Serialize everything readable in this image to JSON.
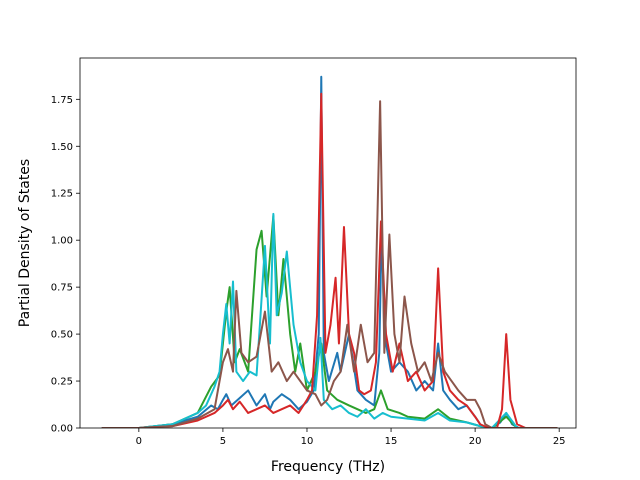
{
  "chart_data": {
    "type": "line",
    "title": "",
    "xlabel": "Frequency (THz)",
    "ylabel": "Partial Density of States",
    "xlim": [
      -3.5,
      26.0
    ],
    "ylim": [
      0.0,
      1.97
    ],
    "xticks": [
      0,
      5,
      10,
      15,
      20,
      25
    ],
    "xtick_labels": [
      "0",
      "5",
      "10",
      "15",
      "20",
      "25"
    ],
    "yticks": [
      0.0,
      0.25,
      0.5,
      0.75,
      1.0,
      1.25,
      1.5,
      1.75
    ],
    "ytick_labels": [
      "0.00",
      "0.25",
      "0.50",
      "0.75",
      "1.00",
      "1.25",
      "1.50",
      "1.75"
    ],
    "grid": false,
    "legend": "none",
    "series": [
      {
        "color": "#1f77b4",
        "x": [
          -2.2,
          0,
          2,
          3.5,
          4.3,
          4.7,
          5.0,
          5.2,
          5.5,
          6.0,
          6.5,
          7.0,
          7.5,
          7.8,
          8.0,
          8.5,
          9.0,
          9.5,
          10.0,
          10.4,
          10.7,
          10.85,
          11.0,
          11.3,
          11.8,
          12.0,
          12.5,
          13.0,
          13.5,
          14.0,
          14.3,
          14.45,
          14.6,
          15.0,
          15.5,
          16.0,
          16.5,
          17.0,
          17.5,
          17.8,
          18.1,
          18.5,
          19.0,
          19.5,
          20.0,
          20.3,
          20.6,
          21.0,
          21.5,
          21.85,
          22.2,
          22.6,
          23.5,
          24.9
        ],
        "y": [
          0,
          0,
          0.02,
          0.06,
          0.12,
          0.1,
          0.15,
          0.18,
          0.12,
          0.16,
          0.2,
          0.12,
          0.18,
          0.1,
          0.14,
          0.18,
          0.15,
          0.1,
          0.14,
          0.2,
          0.5,
          1.87,
          0.4,
          0.25,
          0.4,
          0.3,
          0.5,
          0.2,
          0.15,
          0.12,
          0.4,
          1.1,
          0.5,
          0.3,
          0.35,
          0.3,
          0.2,
          0.25,
          0.2,
          0.45,
          0.2,
          0.15,
          0.1,
          0.12,
          0.06,
          0.02,
          0.0,
          0.0,
          0.03,
          0.08,
          0.02,
          0.0,
          0.0,
          0.0
        ]
      },
      {
        "color": "#2ca02c",
        "x": [
          -2.2,
          0,
          2,
          3.5,
          4.3,
          4.8,
          5.2,
          5.4,
          5.7,
          6.0,
          6.5,
          7.0,
          7.3,
          7.6,
          8.0,
          8.3,
          8.6,
          9.0,
          9.3,
          9.6,
          10.0,
          10.5,
          10.85,
          11.2,
          11.8,
          12.5,
          13.0,
          13.5,
          14.0,
          14.4,
          14.8,
          15.5,
          16.0,
          17.0,
          17.8,
          18.5,
          19.5,
          20.3,
          21.0,
          21.85,
          22.5,
          24.9
        ],
        "y": [
          0,
          0,
          0.02,
          0.08,
          0.22,
          0.28,
          0.62,
          0.75,
          0.35,
          0.42,
          0.3,
          0.95,
          1.05,
          0.7,
          1.13,
          0.6,
          0.9,
          0.5,
          0.3,
          0.45,
          0.2,
          0.3,
          0.45,
          0.2,
          0.15,
          0.12,
          0.1,
          0.08,
          0.1,
          0.2,
          0.1,
          0.08,
          0.06,
          0.05,
          0.1,
          0.05,
          0.03,
          0.01,
          0.0,
          0.06,
          0.0,
          0.0
        ]
      },
      {
        "color": "#17becf",
        "x": [
          -2.2,
          0,
          2,
          3.5,
          4.0,
          4.5,
          4.8,
          5.0,
          5.2,
          5.4,
          5.6,
          5.8,
          6.2,
          6.6,
          7.0,
          7.2,
          7.5,
          7.8,
          8.0,
          8.2,
          8.5,
          8.8,
          9.2,
          9.6,
          10.0,
          10.5,
          10.8,
          11.0,
          11.5,
          12.0,
          12.5,
          13.0,
          13.5,
          14.0,
          14.5,
          15.0,
          16.0,
          17.0,
          17.8,
          18.5,
          19.5,
          20.3,
          21.0,
          21.85,
          22.5,
          24.9
        ],
        "y": [
          0,
          0,
          0.02,
          0.08,
          0.12,
          0.22,
          0.3,
          0.5,
          0.66,
          0.45,
          0.78,
          0.3,
          0.25,
          0.3,
          0.28,
          0.55,
          0.97,
          0.45,
          1.14,
          0.6,
          0.72,
          0.94,
          0.55,
          0.35,
          0.25,
          0.2,
          0.48,
          0.15,
          0.1,
          0.12,
          0.08,
          0.06,
          0.1,
          0.05,
          0.08,
          0.06,
          0.05,
          0.04,
          0.08,
          0.04,
          0.03,
          0.01,
          0.0,
          0.08,
          0.0,
          0.0
        ]
      },
      {
        "color": "#d62728",
        "x": [
          -2.2,
          0,
          2,
          3.5,
          4.5,
          5.0,
          5.3,
          5.6,
          6.0,
          6.5,
          7.0,
          7.5,
          8.0,
          8.5,
          9.0,
          9.5,
          10.0,
          10.3,
          10.6,
          10.85,
          11.1,
          11.4,
          11.7,
          11.9,
          12.2,
          12.5,
          12.8,
          13.1,
          13.4,
          13.8,
          14.1,
          14.4,
          14.7,
          15.1,
          15.5,
          16.0,
          16.5,
          17.0,
          17.5,
          17.8,
          18.1,
          18.5,
          19.0,
          19.5,
          20.0,
          20.3,
          20.8,
          21.3,
          21.6,
          21.85,
          22.1,
          22.5,
          23.0,
          24.9
        ],
        "y": [
          0,
          0,
          0.01,
          0.04,
          0.08,
          0.12,
          0.15,
          0.1,
          0.14,
          0.08,
          0.1,
          0.12,
          0.08,
          0.1,
          0.12,
          0.08,
          0.15,
          0.2,
          0.6,
          1.78,
          0.4,
          0.55,
          0.8,
          0.45,
          1.07,
          0.5,
          0.4,
          0.2,
          0.18,
          0.2,
          0.35,
          1.1,
          0.5,
          0.3,
          0.45,
          0.25,
          0.3,
          0.2,
          0.25,
          0.85,
          0.3,
          0.2,
          0.15,
          0.12,
          0.06,
          0.02,
          0.0,
          0.0,
          0.1,
          0.5,
          0.15,
          0.02,
          0.0,
          0.0
        ]
      },
      {
        "color": "#8c564b",
        "x": [
          -2.2,
          0,
          2,
          3.5,
          4.5,
          5.0,
          5.3,
          5.6,
          5.8,
          6.1,
          6.5,
          7.0,
          7.5,
          7.9,
          8.3,
          8.8,
          9.2,
          9.6,
          10.0,
          10.5,
          10.85,
          11.2,
          11.6,
          12.0,
          12.4,
          12.8,
          13.2,
          13.6,
          14.0,
          14.35,
          14.6,
          14.9,
          15.2,
          15.5,
          15.8,
          16.2,
          16.6,
          17.0,
          17.4,
          17.8,
          18.2,
          18.6,
          19.0,
          19.5,
          20.0,
          20.3,
          20.6,
          21.0,
          21.5,
          21.85,
          22.2,
          22.6,
          23.5,
          24.9
        ],
        "y": [
          0,
          0,
          0.01,
          0.05,
          0.1,
          0.35,
          0.42,
          0.3,
          0.73,
          0.4,
          0.35,
          0.38,
          0.62,
          0.3,
          0.35,
          0.25,
          0.3,
          0.25,
          0.2,
          0.18,
          0.12,
          0.15,
          0.25,
          0.3,
          0.55,
          0.3,
          0.55,
          0.35,
          0.4,
          1.74,
          0.4,
          1.03,
          0.5,
          0.35,
          0.7,
          0.45,
          0.3,
          0.35,
          0.25,
          0.4,
          0.3,
          0.25,
          0.2,
          0.15,
          0.15,
          0.1,
          0.02,
          0.0,
          0.0,
          0.0,
          0.0,
          0.0,
          0.0,
          0.0
        ]
      }
    ]
  }
}
